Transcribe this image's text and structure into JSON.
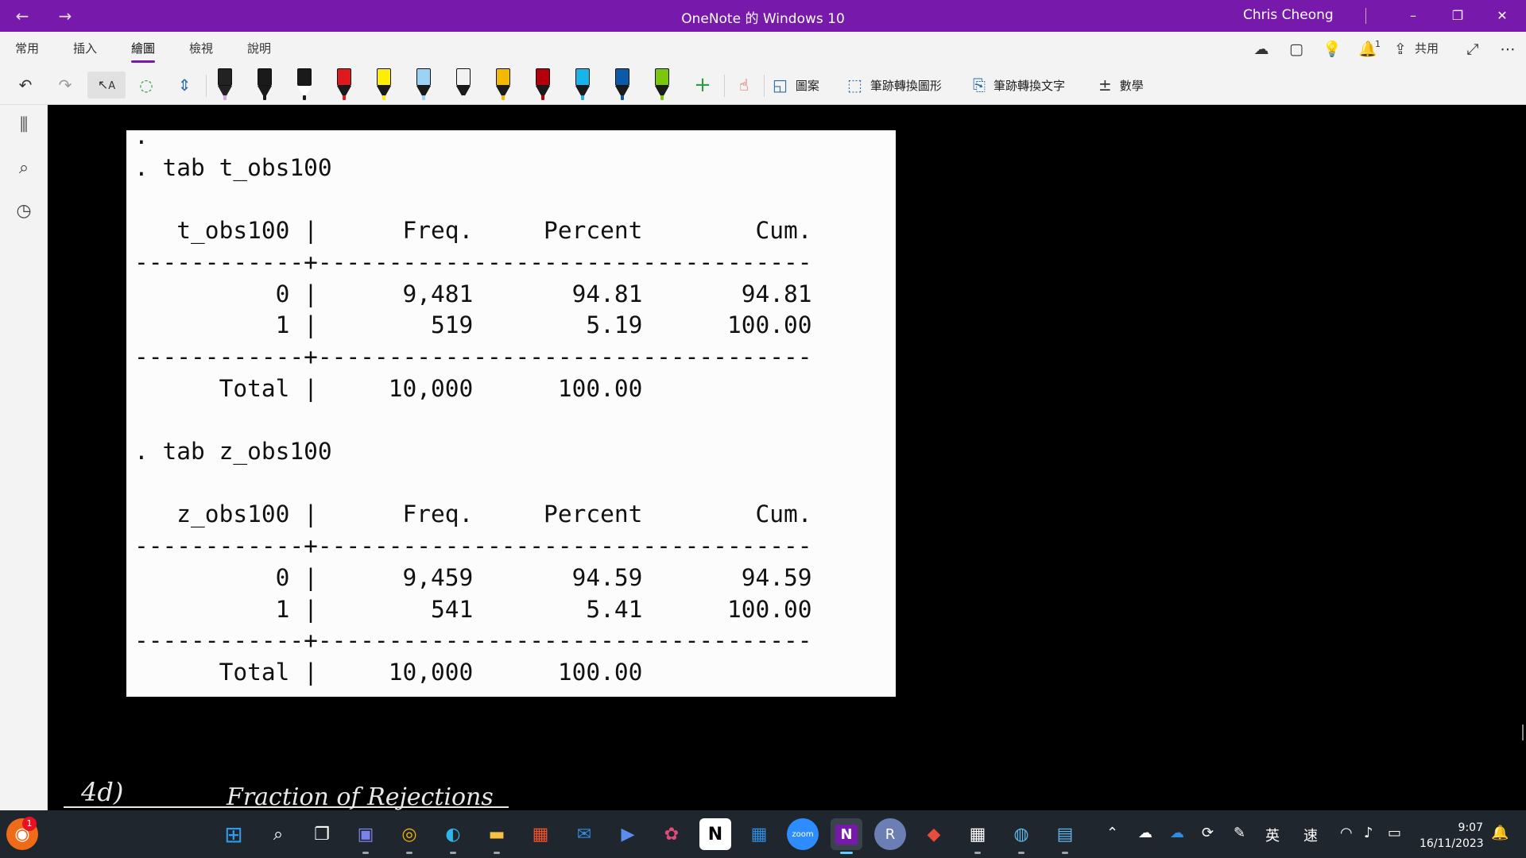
{
  "window": {
    "title": "OneNote 的 Windows 10",
    "user": "Chris Cheong",
    "back_icon": "←",
    "forward_icon": "→",
    "minimize_icon": "–",
    "restore_icon": "❐",
    "close_icon": "✕"
  },
  "ribbon": {
    "tabs": [
      "常用",
      "插入",
      "繪圖",
      "檢視",
      "說明"
    ],
    "active_tab": "繪圖",
    "share_label": "共用",
    "notification_count": "1"
  },
  "toolbar": {
    "shapes_label": "圖案",
    "ink_to_shape_label": "筆跡轉換圖形",
    "ink_to_text_label": "筆跡轉換文字",
    "math_label": "數學",
    "pens": [
      {
        "name": "highlighter-purple",
        "body": "#222222",
        "tip": "#222222",
        "nib": "#d8a7e6"
      },
      {
        "name": "pen-black",
        "body": "#1a1a1a",
        "tip": "#1a1a1a",
        "nib": "#1a1a1a"
      },
      {
        "name": "pen-white",
        "body": "#1a1a1a",
        "tip": "#ffffff",
        "nib": "#1a1a1a"
      },
      {
        "name": "pen-red",
        "body": "#e0191f",
        "tip": "#1a1a1a",
        "nib": "#e0191f"
      },
      {
        "name": "highlighter-yellow",
        "body": "#ffee00",
        "tip": "#1a1a1a",
        "nib": "#ffee00"
      },
      {
        "name": "highlighter-lightblue",
        "body": "#9bd3f5",
        "tip": "#1a1a1a",
        "nib": "#9bd3f5"
      },
      {
        "name": "highlighter-white",
        "body": "#f2f2f2",
        "tip": "#1a1a1a",
        "nib": "#f2f2f2"
      },
      {
        "name": "pen-galaxy-gold",
        "body": "#f5b800",
        "tip": "#1a1a1a",
        "nib": "#f5b800"
      },
      {
        "name": "pen-darkred",
        "body": "#b5000b",
        "tip": "#1a1a1a",
        "nib": "#b5000b"
      },
      {
        "name": "pen-cyan",
        "body": "#19b4e8",
        "tip": "#1a1a1a",
        "nib": "#19b4e8"
      },
      {
        "name": "pen-navy",
        "body": "#0b5aa8",
        "tip": "#1a1a1a",
        "nib": "#0b5aa8"
      },
      {
        "name": "pen-green",
        "body": "#7ac70c",
        "tip": "#1a1a1a",
        "nib": "#7ac70c"
      }
    ]
  },
  "stata_output": {
    "lines": [
      ".",
      ". tab t_obs100",
      "",
      "   t_obs100 |      Freq.     Percent        Cum.",
      "------------+-----------------------------------",
      "          0 |      9,481       94.81       94.81",
      "          1 |        519        5.19      100.00",
      "------------+-----------------------------------",
      "      Total |     10,000      100.00",
      "",
      ". tab z_obs100",
      "",
      "   z_obs100 |      Freq.     Percent        Cum.",
      "------------+-----------------------------------",
      "          0 |      9,459       94.59       94.59",
      "          1 |        541        5.41      100.00",
      "------------+-----------------------------------",
      "      Total |     10,000      100.00"
    ]
  },
  "handwriting": {
    "label_4d": "4d)",
    "heading": "Fraction of Rejections"
  },
  "taskbar": {
    "start_badge": "1",
    "ime_lang": "英",
    "ime_mode": "速",
    "time": "9:07",
    "date": "16/11/2023"
  }
}
